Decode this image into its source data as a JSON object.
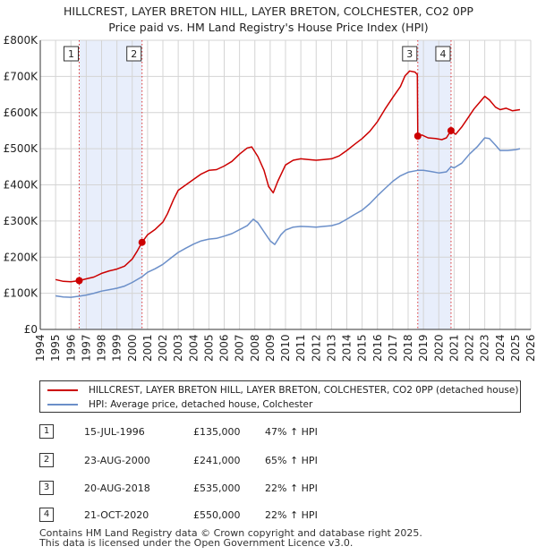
{
  "title_line1": "HILLCREST, LAYER BRETON HILL, LAYER BRETON, COLCHESTER, CO2 0PP",
  "title_line2": "Price paid vs. HM Land Registry's House Price Index (HPI)",
  "chart_data": {
    "type": "line",
    "title": "HILLCREST, LAYER BRETON HILL, LAYER BRETON, COLCHESTER, CO2 0PP — Price paid vs. HM Land Registry's House Price Index (HPI)",
    "xlabel": "",
    "ylabel": "",
    "xlim": [
      1994,
      2026
    ],
    "ylim": [
      0,
      800000
    ],
    "x_ticks": [
      1994,
      1995,
      1996,
      1997,
      1998,
      1999,
      2000,
      2001,
      2002,
      2003,
      2004,
      2005,
      2006,
      2007,
      2008,
      2009,
      2010,
      2011,
      2012,
      2013,
      2014,
      2015,
      2016,
      2017,
      2018,
      2019,
      2020,
      2021,
      2022,
      2023,
      2024,
      2025,
      2026
    ],
    "y_ticks": [
      0,
      100000,
      200000,
      300000,
      400000,
      500000,
      600000,
      700000,
      800000
    ],
    "y_tick_labels": [
      "£0",
      "£100K",
      "£200K",
      "£300K",
      "£400K",
      "£500K",
      "£600K",
      "£700K",
      "£800K"
    ],
    "grid": true,
    "shaded_periods": [
      [
        1996.54,
        2000.64
      ],
      [
        2018.63,
        2020.8
      ]
    ],
    "series": [
      {
        "name": "HILLCREST, LAYER BRETON HILL, LAYER BRETON, COLCHESTER, CO2 0PP (detached house)",
        "color": "#cc0000",
        "points": [
          [
            1995,
            138000
          ],
          [
            1995.5,
            133000
          ],
          [
            1996,
            132000
          ],
          [
            1996.54,
            135000
          ],
          [
            1997,
            140000
          ],
          [
            1997.5,
            145000
          ],
          [
            1998,
            155000
          ],
          [
            1998.5,
            162000
          ],
          [
            1999,
            167000
          ],
          [
            1999.5,
            175000
          ],
          [
            2000,
            195000
          ],
          [
            2000.3,
            215000
          ],
          [
            2000.64,
            241000
          ],
          [
            2001,
            262000
          ],
          [
            2001.5,
            277000
          ],
          [
            2002,
            297000
          ],
          [
            2002.3,
            320000
          ],
          [
            2002.7,
            360000
          ],
          [
            2003,
            385000
          ],
          [
            2003.5,
            400000
          ],
          [
            2004,
            415000
          ],
          [
            2004.5,
            430000
          ],
          [
            2005,
            440000
          ],
          [
            2005.5,
            442000
          ],
          [
            2006,
            452000
          ],
          [
            2006.5,
            465000
          ],
          [
            2007,
            485000
          ],
          [
            2007.5,
            502000
          ],
          [
            2007.8,
            505000
          ],
          [
            2008.2,
            478000
          ],
          [
            2008.6,
            440000
          ],
          [
            2008.9,
            395000
          ],
          [
            2009.2,
            378000
          ],
          [
            2009.5,
            410000
          ],
          [
            2010,
            455000
          ],
          [
            2010.5,
            468000
          ],
          [
            2011,
            472000
          ],
          [
            2011.5,
            470000
          ],
          [
            2012,
            468000
          ],
          [
            2012.5,
            470000
          ],
          [
            2013,
            472000
          ],
          [
            2013.5,
            480000
          ],
          [
            2014,
            495000
          ],
          [
            2014.5,
            512000
          ],
          [
            2015,
            528000
          ],
          [
            2015.5,
            548000
          ],
          [
            2016,
            575000
          ],
          [
            2016.5,
            610000
          ],
          [
            2017,
            642000
          ],
          [
            2017.5,
            672000
          ],
          [
            2017.8,
            702000
          ],
          [
            2018.1,
            715000
          ],
          [
            2018.45,
            712000
          ],
          [
            2018.6,
            705000
          ],
          [
            2018.63,
            535000
          ],
          [
            2018.9,
            538000
          ],
          [
            2019.3,
            530000
          ],
          [
            2019.8,
            528000
          ],
          [
            2020.2,
            525000
          ],
          [
            2020.5,
            530000
          ],
          [
            2020.8,
            550000
          ],
          [
            2021.1,
            540000
          ],
          [
            2021.5,
            560000
          ],
          [
            2021.9,
            585000
          ],
          [
            2022.3,
            610000
          ],
          [
            2022.7,
            630000
          ],
          [
            2023,
            645000
          ],
          [
            2023.3,
            635000
          ],
          [
            2023.7,
            615000
          ],
          [
            2024,
            608000
          ],
          [
            2024.4,
            612000
          ],
          [
            2024.8,
            605000
          ],
          [
            2025.3,
            608000
          ]
        ]
      },
      {
        "name": "HPI: Average price, detached house, Colchester",
        "color": "#6b8fc9",
        "points": [
          [
            1995,
            93000
          ],
          [
            1995.5,
            90000
          ],
          [
            1996,
            89000
          ],
          [
            1996.54,
            92000
          ],
          [
            1997,
            95000
          ],
          [
            1997.5,
            100000
          ],
          [
            1998,
            106000
          ],
          [
            1998.5,
            110000
          ],
          [
            1999,
            114000
          ],
          [
            1999.5,
            120000
          ],
          [
            2000,
            130000
          ],
          [
            2000.64,
            146000
          ],
          [
            2001,
            158000
          ],
          [
            2001.5,
            168000
          ],
          [
            2002,
            180000
          ],
          [
            2002.5,
            197000
          ],
          [
            2003,
            213000
          ],
          [
            2003.5,
            225000
          ],
          [
            2004,
            236000
          ],
          [
            2004.5,
            245000
          ],
          [
            2005,
            250000
          ],
          [
            2005.5,
            252000
          ],
          [
            2006,
            258000
          ],
          [
            2006.5,
            265000
          ],
          [
            2007,
            276000
          ],
          [
            2007.5,
            287000
          ],
          [
            2007.9,
            305000
          ],
          [
            2008.2,
            295000
          ],
          [
            2008.6,
            270000
          ],
          [
            2009,
            245000
          ],
          [
            2009.3,
            235000
          ],
          [
            2009.7,
            262000
          ],
          [
            2010,
            275000
          ],
          [
            2010.5,
            283000
          ],
          [
            2011,
            285000
          ],
          [
            2011.5,
            284000
          ],
          [
            2012,
            283000
          ],
          [
            2012.5,
            285000
          ],
          [
            2013,
            287000
          ],
          [
            2013.5,
            293000
          ],
          [
            2014,
            305000
          ],
          [
            2014.5,
            318000
          ],
          [
            2015,
            330000
          ],
          [
            2015.5,
            348000
          ],
          [
            2016,
            370000
          ],
          [
            2016.5,
            390000
          ],
          [
            2017,
            410000
          ],
          [
            2017.5,
            425000
          ],
          [
            2018,
            435000
          ],
          [
            2018.63,
            440000
          ],
          [
            2019,
            440000
          ],
          [
            2019.5,
            437000
          ],
          [
            2020,
            433000
          ],
          [
            2020.5,
            436000
          ],
          [
            2020.8,
            450000
          ],
          [
            2021,
            447000
          ],
          [
            2021.5,
            460000
          ],
          [
            2022,
            485000
          ],
          [
            2022.5,
            505000
          ],
          [
            2023,
            530000
          ],
          [
            2023.3,
            528000
          ],
          [
            2023.7,
            510000
          ],
          [
            2024,
            495000
          ],
          [
            2024.5,
            495000
          ],
          [
            2025,
            497000
          ],
          [
            2025.3,
            500000
          ]
        ]
      }
    ],
    "sales": [
      {
        "num": "1",
        "year": 1996.54,
        "price": 135000
      },
      {
        "num": "2",
        "year": 2000.64,
        "price": 241000
      },
      {
        "num": "3",
        "year": 2018.63,
        "price": 535000
      },
      {
        "num": "4",
        "year": 2020.8,
        "price": 550000
      }
    ]
  },
  "legend": {
    "property_label": "HILLCREST, LAYER BRETON HILL, LAYER BRETON, COLCHESTER, CO2 0PP (detached house)",
    "hpi_label": "HPI: Average price, detached house, Colchester"
  },
  "transactions": [
    {
      "num": "1",
      "date": "15-JUL-1996",
      "price": "£135,000",
      "hpi": "47% ↑ HPI"
    },
    {
      "num": "2",
      "date": "23-AUG-2000",
      "price": "£241,000",
      "hpi": "65% ↑ HPI"
    },
    {
      "num": "3",
      "date": "20-AUG-2018",
      "price": "£535,000",
      "hpi": "22% ↑ HPI"
    },
    {
      "num": "4",
      "date": "21-OCT-2020",
      "price": "£550,000",
      "hpi": "22% ↑ HPI"
    }
  ],
  "footer_line1": "Contains HM Land Registry data © Crown copyright and database right 2025.",
  "footer_line2": "This data is licensed under the Open Government Licence v3.0.",
  "colors": {
    "property": "#cc0000",
    "hpi": "#6b8fc9",
    "shade": "#e8eefb",
    "grid": "#d4d4d4"
  }
}
